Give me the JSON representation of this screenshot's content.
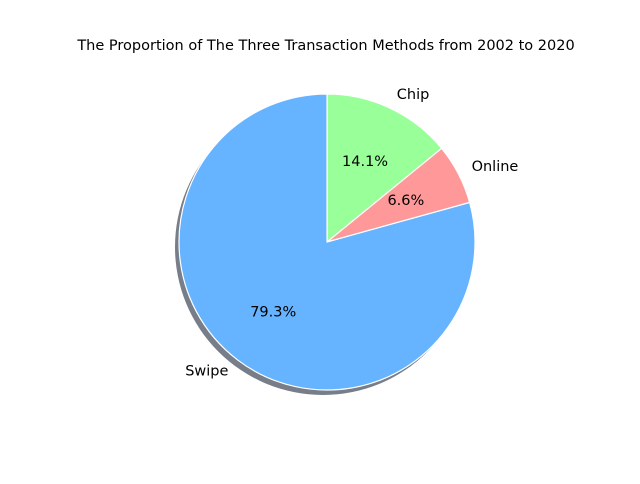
{
  "chart_data": {
    "type": "pie",
    "title": "The Proportion of The Three Transaction Methods from 2002 to 2020",
    "categories": [
      "Chip",
      "Online",
      "Swipe"
    ],
    "values": [
      14.1,
      6.6,
      79.3
    ],
    "percent_labels": [
      "14.1%",
      "6.6%",
      "79.3%"
    ],
    "colors": [
      "#99ff99",
      "#ff9999",
      "#66b3ff"
    ],
    "start_angle_deg": 90,
    "direction": "clockwise",
    "shadow": true,
    "edge_color": "#ffffff"
  }
}
